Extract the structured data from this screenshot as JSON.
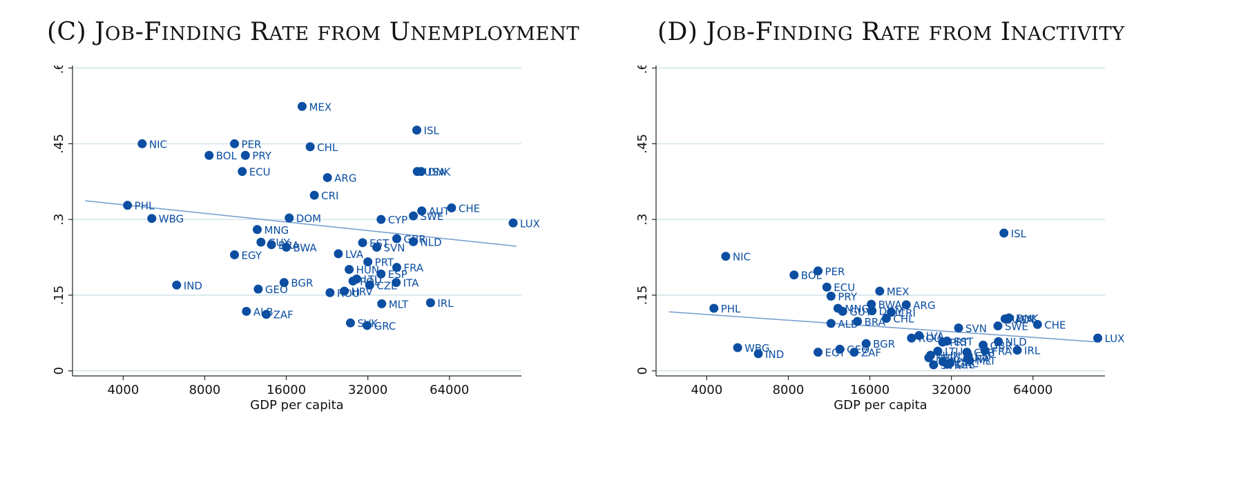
{
  "chart_data": [
    {
      "type": "scatter",
      "title": "(C) Job-Finding Rate from Unemployment",
      "xlabel": "GDP per capita",
      "ylabel": "",
      "x_scale": "log2",
      "xlim": [
        2600,
        118000
      ],
      "ylim": [
        -0.01,
        0.605
      ],
      "x_ticks": [
        4000,
        8000,
        16000,
        32000,
        64000
      ],
      "x_tick_labels": [
        "4000",
        "8000",
        "16000",
        "32000",
        "64000"
      ],
      "y_ticks": [
        0,
        0.15,
        0.3,
        0.45,
        0.6
      ],
      "y_tick_labels": [
        "0",
        ".15",
        ".3",
        ".45",
        ".6"
      ],
      "grid": true,
      "legend": "none",
      "point_color": "#0b4ea2",
      "fit_color": "#7aa1cf",
      "fit_line": [
        [
          2900,
          0.337
        ],
        [
          113000,
          0.247
        ]
      ],
      "points": [
        {
          "label": "NIC",
          "x": 4700,
          "y": 0.45
        },
        {
          "label": "PHL",
          "x": 4150,
          "y": 0.328
        },
        {
          "label": "WBG",
          "x": 5100,
          "y": 0.302
        },
        {
          "label": "IND",
          "x": 6300,
          "y": 0.17
        },
        {
          "label": "BOL",
          "x": 8300,
          "y": 0.427
        },
        {
          "label": "PER",
          "x": 10300,
          "y": 0.45
        },
        {
          "label": "PRY",
          "x": 11300,
          "y": 0.427
        },
        {
          "label": "ECU",
          "x": 11000,
          "y": 0.395
        },
        {
          "label": "EGY",
          "x": 10300,
          "y": 0.23
        },
        {
          "label": "MNG",
          "x": 12500,
          "y": 0.28
        },
        {
          "label": "GUY",
          "x": 12900,
          "y": 0.255
        },
        {
          "label": "BRA",
          "x": 14100,
          "y": 0.25
        },
        {
          "label": "BWA",
          "x": 16000,
          "y": 0.245
        },
        {
          "label": "GEO",
          "x": 12600,
          "y": 0.162
        },
        {
          "label": "BGR",
          "x": 15700,
          "y": 0.175
        },
        {
          "label": "ALB",
          "x": 11400,
          "y": 0.118
        },
        {
          "label": "ZAF",
          "x": 13500,
          "y": 0.112
        },
        {
          "label": "MEX",
          "x": 18300,
          "y": 0.524
        },
        {
          "label": "CHL",
          "x": 19600,
          "y": 0.444
        },
        {
          "label": "CRI",
          "x": 20300,
          "y": 0.348
        },
        {
          "label": "DOM",
          "x": 16400,
          "y": 0.303
        },
        {
          "label": "ARG",
          "x": 22700,
          "y": 0.383
        },
        {
          "label": "LVA",
          "x": 24900,
          "y": 0.232
        },
        {
          "label": "HUN",
          "x": 27300,
          "y": 0.201
        },
        {
          "label": "ROU",
          "x": 23200,
          "y": 0.155
        },
        {
          "label": "HRV",
          "x": 26200,
          "y": 0.158
        },
        {
          "label": "POL",
          "x": 28200,
          "y": 0.178
        },
        {
          "label": "LTU",
          "x": 29100,
          "y": 0.182
        },
        {
          "label": "EST",
          "x": 30600,
          "y": 0.254
        },
        {
          "label": "PRT",
          "x": 32000,
          "y": 0.216
        },
        {
          "label": "CZE",
          "x": 32500,
          "y": 0.17
        },
        {
          "label": "SVK",
          "x": 27600,
          "y": 0.095
        },
        {
          "label": "GRC",
          "x": 31800,
          "y": 0.09
        },
        {
          "label": "SVN",
          "x": 34500,
          "y": 0.245
        },
        {
          "label": "CYP",
          "x": 35800,
          "y": 0.3
        },
        {
          "label": "ESP",
          "x": 35800,
          "y": 0.192
        },
        {
          "label": "MLT",
          "x": 36000,
          "y": 0.133
        },
        {
          "label": "GBR",
          "x": 40900,
          "y": 0.262
        },
        {
          "label": "FRA",
          "x": 40900,
          "y": 0.205
        },
        {
          "label": "ITA",
          "x": 40700,
          "y": 0.175
        },
        {
          "label": "ISL",
          "x": 48500,
          "y": 0.477
        },
        {
          "label": "USA",
          "x": 48700,
          "y": 0.395
        },
        {
          "label": "DNK",
          "x": 50300,
          "y": 0.395
        },
        {
          "label": "AUT",
          "x": 50600,
          "y": 0.317
        },
        {
          "label": "SWE",
          "x": 47100,
          "y": 0.307
        },
        {
          "label": "NLD",
          "x": 47100,
          "y": 0.256
        },
        {
          "label": "IRL",
          "x": 54500,
          "y": 0.135
        },
        {
          "label": "CHE",
          "x": 65200,
          "y": 0.323
        },
        {
          "label": "LUX",
          "x": 110000,
          "y": 0.293
        }
      ]
    },
    {
      "type": "scatter",
      "title": "(D) Job-Finding Rate from Inactivity",
      "xlabel": "GDP per capita",
      "ylabel": "",
      "x_scale": "log2",
      "xlim": [
        2600,
        118000
      ],
      "ylim": [
        -0.01,
        0.605
      ],
      "x_ticks": [
        4000,
        8000,
        16000,
        32000,
        64000
      ],
      "x_tick_labels": [
        "4000",
        "8000",
        "16000",
        "32000",
        "64000"
      ],
      "y_ticks": [
        0,
        0.15,
        0.3,
        0.45,
        0.6
      ],
      "y_tick_labels": [
        "0",
        ".15",
        ".3",
        ".45",
        ".6"
      ],
      "grid": true,
      "legend": "none",
      "point_color": "#0b4ea2",
      "fit_color": "#7aa1cf",
      "fit_line": [
        [
          2900,
          0.117
        ],
        [
          113000,
          0.057
        ]
      ],
      "points": [
        {
          "label": "NIC",
          "x": 4700,
          "y": 0.227
        },
        {
          "label": "PHL",
          "x": 4250,
          "y": 0.124
        },
        {
          "label": "WBG",
          "x": 5200,
          "y": 0.046
        },
        {
          "label": "IND",
          "x": 6200,
          "y": 0.034
        },
        {
          "label": "BOL",
          "x": 8400,
          "y": 0.19
        },
        {
          "label": "PER",
          "x": 10300,
          "y": 0.198
        },
        {
          "label": "ECU",
          "x": 11100,
          "y": 0.166
        },
        {
          "label": "PRY",
          "x": 11500,
          "y": 0.148
        },
        {
          "label": "MNG",
          "x": 12200,
          "y": 0.124
        },
        {
          "label": "GUY",
          "x": 12700,
          "y": 0.118
        },
        {
          "label": "ALB",
          "x": 11500,
          "y": 0.094
        },
        {
          "label": "EGY",
          "x": 10300,
          "y": 0.037
        },
        {
          "label": "GEO",
          "x": 12400,
          "y": 0.043
        },
        {
          "label": "ZAF",
          "x": 14000,
          "y": 0.037
        },
        {
          "label": "BRA",
          "x": 14400,
          "y": 0.098
        },
        {
          "label": "BWA",
          "x": 16200,
          "y": 0.132
        },
        {
          "label": "DOM",
          "x": 16300,
          "y": 0.119
        },
        {
          "label": "CRI",
          "x": 19200,
          "y": 0.116
        },
        {
          "label": "CHL",
          "x": 18400,
          "y": 0.104
        },
        {
          "label": "MEX",
          "x": 17400,
          "y": 0.158
        },
        {
          "label": "ARG",
          "x": 21800,
          "y": 0.131
        },
        {
          "label": "BGR",
          "x": 15500,
          "y": 0.054
        },
        {
          "label": "ROU",
          "x": 22800,
          "y": 0.065
        },
        {
          "label": "LVA",
          "x": 24300,
          "y": 0.07
        },
        {
          "label": "HRV",
          "x": 26400,
          "y": 0.026
        },
        {
          "label": "HUN",
          "x": 26800,
          "y": 0.031
        },
        {
          "label": "SVK",
          "x": 27500,
          "y": 0.012
        },
        {
          "label": "LTU",
          "x": 28500,
          "y": 0.039
        },
        {
          "label": "PRT",
          "x": 29700,
          "y": 0.057
        },
        {
          "label": "EST",
          "x": 30800,
          "y": 0.059
        },
        {
          "label": "POL",
          "x": 29800,
          "y": 0.018
        },
        {
          "label": "CZE",
          "x": 30900,
          "y": 0.013
        },
        {
          "label": "GRC",
          "x": 31600,
          "y": 0.015
        },
        {
          "label": "SVN",
          "x": 34000,
          "y": 0.085
        },
        {
          "label": "CYP",
          "x": 36500,
          "y": 0.037
        },
        {
          "label": "ESP",
          "x": 36900,
          "y": 0.03
        },
        {
          "label": "MLT",
          "x": 37300,
          "y": 0.021
        },
        {
          "label": "ITA",
          "x": 36700,
          "y": 0.024
        },
        {
          "label": "GBR",
          "x": 41900,
          "y": 0.051
        },
        {
          "label": "FRA",
          "x": 42600,
          "y": 0.04
        },
        {
          "label": "NLD",
          "x": 47700,
          "y": 0.058
        },
        {
          "label": "SWE",
          "x": 47500,
          "y": 0.089
        },
        {
          "label": "USA",
          "x": 50500,
          "y": 0.103
        },
        {
          "label": "AUT",
          "x": 51700,
          "y": 0.103
        },
        {
          "label": "DNK",
          "x": 52200,
          "y": 0.105
        },
        {
          "label": "ISL",
          "x": 50000,
          "y": 0.273
        },
        {
          "label": "IRL",
          "x": 56000,
          "y": 0.041
        },
        {
          "label": "CHE",
          "x": 66500,
          "y": 0.092
        },
        {
          "label": "LUX",
          "x": 111000,
          "y": 0.065
        }
      ]
    }
  ]
}
